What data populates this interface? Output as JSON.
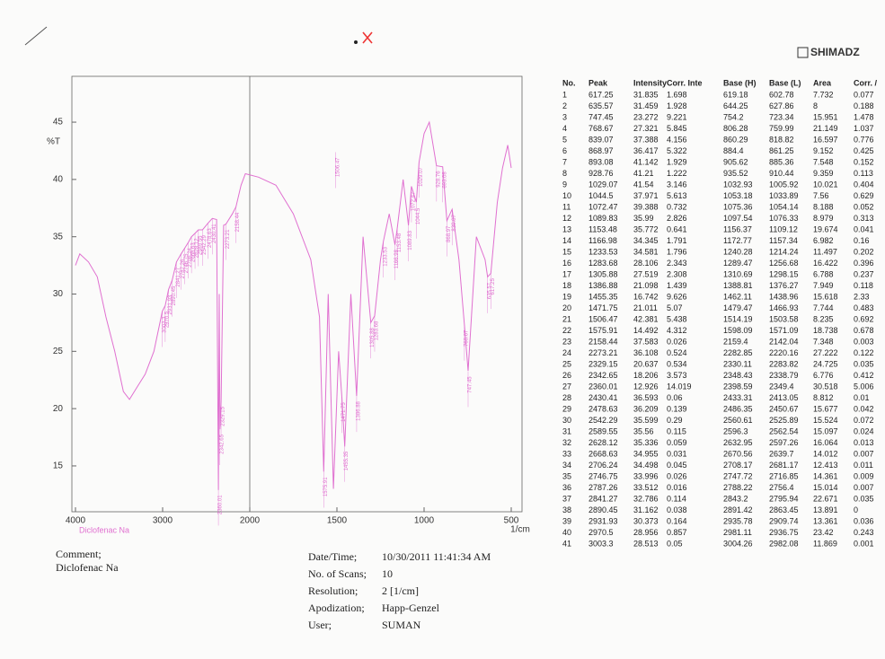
{
  "header": {
    "brand": "SHIMADZ"
  },
  "chart_data": {
    "type": "line",
    "x_label": "1/cm",
    "y_label": "%T",
    "sample_label": "Diclofenac Na",
    "color": "#e070d0",
    "xlim": [
      4000,
      500
    ],
    "xticks": [
      4000,
      3000,
      2000,
      1500,
      1000,
      500
    ],
    "ylim": [
      11,
      49
    ],
    "yticks": [
      15,
      20,
      25,
      30,
      35,
      40,
      45
    ],
    "x": [
      4000,
      3950,
      3850,
      3750,
      3650,
      3550,
      3450,
      3380,
      3300,
      3200,
      3100,
      3003.3,
      2970.5,
      2931.93,
      2890.45,
      2841.27,
      2787.26,
      2746.75,
      2706.24,
      2668.63,
      2628.12,
      2589.55,
      2542.29,
      2478.63,
      2430.41,
      2380,
      2360.01,
      2350,
      2342.65,
      2329.15,
      2300,
      2273.21,
      2200,
      2158.44,
      2100,
      2050,
      1950,
      1850,
      1750,
      1650,
      1600,
      1575.91,
      1550,
      1520,
      1490,
      1471.75,
      1455.35,
      1420,
      1386.88,
      1350,
      1305.88,
      1283.68,
      1250,
      1233.53,
      1200,
      1166.98,
      1153.48,
      1120,
      1089.83,
      1072.47,
      1044.5,
      1029.07,
      1000,
      970,
      928.76,
      893.08,
      868.97,
      839.07,
      800,
      768.67,
      747.45,
      700,
      650,
      635.57,
      617.25,
      580,
      550,
      520,
      500
    ],
    "values": [
      32.5,
      33.5,
      32.8,
      31.5,
      28,
      25,
      21.5,
      20.8,
      21.8,
      23,
      25,
      28.5,
      29,
      30.4,
      31.2,
      32.8,
      33.5,
      34,
      34.5,
      35,
      35.3,
      35.6,
      35.6,
      36.2,
      36.6,
      36.5,
      12.9,
      30,
      18.2,
      20.6,
      36,
      36.1,
      37,
      37.6,
      39.5,
      40.5,
      40.2,
      39.5,
      37,
      33,
      28,
      14.5,
      30,
      13,
      25,
      21,
      16.7,
      30,
      21.1,
      35,
      27.5,
      28.1,
      33,
      34.6,
      37,
      34.3,
      35.8,
      40,
      36,
      39.4,
      38,
      41.5,
      44,
      45,
      41.2,
      41.1,
      36.4,
      37.4,
      33,
      27.3,
      23.3,
      35,
      33,
      31.5,
      31.8,
      38,
      41,
      43,
      41
    ]
  },
  "table": {
    "columns": [
      "No.",
      "Peak",
      "Intensity",
      "Corr. Inte",
      "Base (H)",
      "Base (L)",
      "Area",
      "Corr. /"
    ],
    "rows": [
      [
        "1",
        "617.25",
        "31.835",
        "1.698",
        "619.18",
        "602.78",
        "7.732",
        "0.077"
      ],
      [
        "2",
        "635.57",
        "31.459",
        "1.928",
        "644.25",
        "627.86",
        "8",
        "0.188"
      ],
      [
        "3",
        "747.45",
        "23.272",
        "9.221",
        "754.2",
        "723.34",
        "15.951",
        "1.478"
      ],
      [
        "4",
        "768.67",
        "27.321",
        "5.845",
        "806.28",
        "759.99",
        "21.149",
        "1.037"
      ],
      [
        "5",
        "839.07",
        "37.388",
        "4.156",
        "860.29",
        "818.82",
        "16.597",
        "0.776"
      ],
      [
        "6",
        "868.97",
        "36.417",
        "5.322",
        "884.4",
        "861.25",
        "9.152",
        "0.425"
      ],
      [
        "7",
        "893.08",
        "41.142",
        "1.929",
        "905.62",
        "885.36",
        "7.548",
        "0.152"
      ],
      [
        "8",
        "928.76",
        "41.21",
        "1.222",
        "935.52",
        "910.44",
        "9.359",
        "0.113"
      ],
      [
        "9",
        "1029.07",
        "41.54",
        "3.146",
        "1032.93",
        "1005.92",
        "10.021",
        "0.404"
      ],
      [
        "10",
        "1044.5",
        "37.971",
        "5.613",
        "1053.18",
        "1033.89",
        "7.56",
        "0.629"
      ],
      [
        "11",
        "1072.47",
        "39.388",
        "0.732",
        "1075.36",
        "1054.14",
        "8.188",
        "0.052"
      ],
      [
        "12",
        "1089.83",
        "35.99",
        "2.826",
        "1097.54",
        "1076.33",
        "8.979",
        "0.313"
      ],
      [
        "13",
        "1153.48",
        "35.772",
        "0.641",
        "1156.37",
        "1109.12",
        "19.674",
        "0.041"
      ],
      [
        "14",
        "1166.98",
        "34.345",
        "1.791",
        "1172.77",
        "1157.34",
        "6.982",
        "0.16"
      ],
      [
        "15",
        "1233.53",
        "34.581",
        "1.796",
        "1240.28",
        "1214.24",
        "11.497",
        "0.202"
      ],
      [
        "16",
        "1283.68",
        "28.106",
        "2.343",
        "1289.47",
        "1256.68",
        "16.422",
        "0.396"
      ],
      [
        "17",
        "1305.88",
        "27.519",
        "2.308",
        "1310.69",
        "1298.15",
        "6.788",
        "0.237"
      ],
      [
        "18",
        "1386.88",
        "21.098",
        "1.439",
        "1388.81",
        "1376.27",
        "7.949",
        "0.118"
      ],
      [
        "19",
        "1455.35",
        "16.742",
        "9.626",
        "1462.11",
        "1438.96",
        "15.618",
        "2.33"
      ],
      [
        "20",
        "1471.75",
        "21.011",
        "5.07",
        "1479.47",
        "1466.93",
        "7.744",
        "0.483"
      ],
      [
        "21",
        "1506.47",
        "42.381",
        "5.438",
        "1514.19",
        "1503.58",
        "8.235",
        "0.692"
      ],
      [
        "22",
        "1575.91",
        "14.492",
        "4.312",
        "1598.09",
        "1571.09",
        "18.738",
        "0.678"
      ],
      [
        "23",
        "2158.44",
        "37.583",
        "0.026",
        "2159.4",
        "2142.04",
        "7.348",
        "0.003"
      ],
      [
        "24",
        "2273.21",
        "36.108",
        "0.524",
        "2282.85",
        "2220.16",
        "27.222",
        "0.122"
      ],
      [
        "25",
        "2329.15",
        "20.637",
        "0.534",
        "2330.11",
        "2283.82",
        "24.725",
        "0.035"
      ],
      [
        "26",
        "2342.65",
        "18.206",
        "3.573",
        "2348.43",
        "2338.79",
        "6.776",
        "0.412"
      ],
      [
        "27",
        "2360.01",
        "12.926",
        "14.019",
        "2398.59",
        "2349.4",
        "30.518",
        "5.006"
      ],
      [
        "28",
        "2430.41",
        "36.593",
        "0.06",
        "2433.31",
        "2413.05",
        "8.812",
        "0.01"
      ],
      [
        "29",
        "2478.63",
        "36.209",
        "0.139",
        "2486.35",
        "2450.67",
        "15.677",
        "0.042"
      ],
      [
        "30",
        "2542.29",
        "35.599",
        "0.29",
        "2560.61",
        "2525.89",
        "15.524",
        "0.072"
      ],
      [
        "31",
        "2589.55",
        "35.56",
        "0.115",
        "2596.3",
        "2562.54",
        "15.097",
        "0.024"
      ],
      [
        "32",
        "2628.12",
        "35.336",
        "0.059",
        "2632.95",
        "2597.26",
        "16.064",
        "0.013"
      ],
      [
        "33",
        "2668.63",
        "34.955",
        "0.031",
        "2670.56",
        "2639.7",
        "14.012",
        "0.007"
      ],
      [
        "34",
        "2706.24",
        "34.498",
        "0.045",
        "2708.17",
        "2681.17",
        "12.413",
        "0.011"
      ],
      [
        "35",
        "2746.75",
        "33.996",
        "0.026",
        "2747.72",
        "2716.85",
        "14.361",
        "0.009"
      ],
      [
        "36",
        "2787.26",
        "33.512",
        "0.016",
        "2788.22",
        "2756.4",
        "15.014",
        "0.007"
      ],
      [
        "37",
        "2841.27",
        "32.786",
        "0.114",
        "2843.2",
        "2795.94",
        "22.671",
        "0.035"
      ],
      [
        "38",
        "2890.45",
        "31.162",
        "0.038",
        "2891.42",
        "2863.45",
        "13.891",
        "0"
      ],
      [
        "39",
        "2931.93",
        "30.373",
        "0.164",
        "2935.78",
        "2909.74",
        "13.361",
        "0.036"
      ],
      [
        "40",
        "2970.5",
        "28.956",
        "0.857",
        "2981.11",
        "2936.75",
        "23.42",
        "0.243"
      ],
      [
        "41",
        "3003.3",
        "28.513",
        "0.05",
        "3004.26",
        "2982.08",
        "11.869",
        "0.001"
      ]
    ]
  },
  "footer": {
    "comment_label": "Comment;",
    "comment": "Diclofenac Na",
    "info": [
      [
        "Date/Time;",
        "10/30/2011 11:41:34 AM"
      ],
      [
        "No. of Scans;",
        "10"
      ],
      [
        "Resolution;",
        "2 [1/cm]"
      ],
      [
        "Apodization;",
        "Happ-Genzel"
      ],
      [
        "User;",
        "SUMAN"
      ]
    ]
  }
}
